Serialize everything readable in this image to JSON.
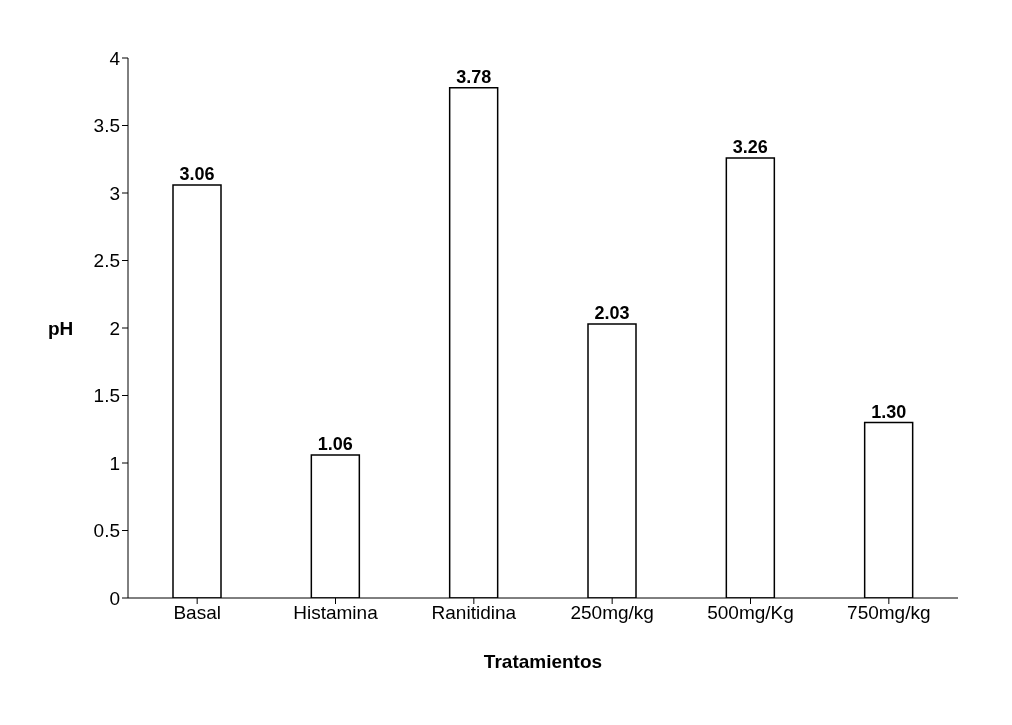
{
  "chart_data": {
    "type": "bar",
    "xlabel": "Tratamientos",
    "ylabel": "pH",
    "categories": [
      "Basal",
      "Histamina",
      "Ranitidina",
      "250mg/kg",
      "500mg/Kg",
      "750mg/kg"
    ],
    "values": [
      3.06,
      1.06,
      3.78,
      2.03,
      3.26,
      1.3
    ],
    "value_labels": [
      "3.06",
      "1.06",
      "3.78",
      "2.03",
      "3.26",
      "1.30"
    ],
    "color": "#ffffff",
    "ylim": [
      0,
      4
    ],
    "yticks": [
      0,
      0.5,
      1,
      1.5,
      2,
      2.5,
      3,
      3.5,
      4
    ],
    "grid": false
  }
}
